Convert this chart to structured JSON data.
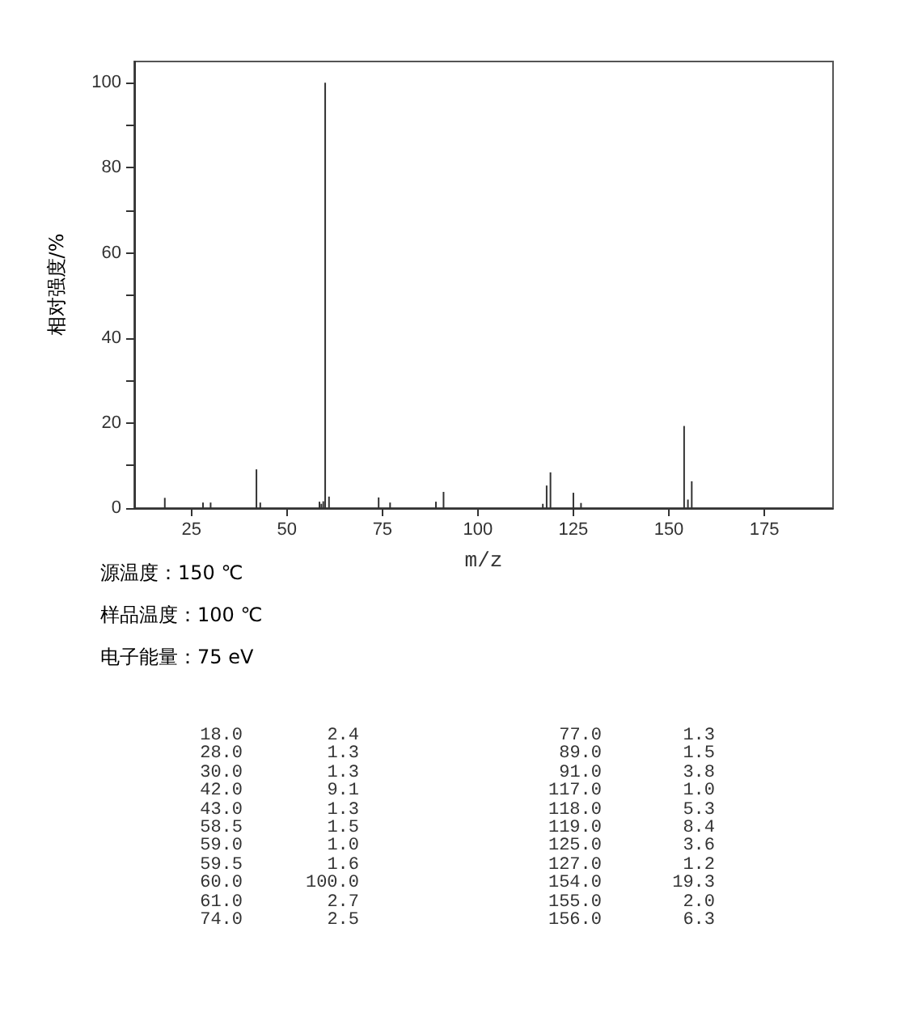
{
  "chart_data": [
    {
      "type": "bar",
      "xlabel": "m/z",
      "ylabel": "相对强度/%",
      "x": [
        18,
        28,
        30,
        42,
        43,
        58.5,
        59,
        59.5,
        60,
        61,
        74,
        77,
        89,
        91,
        117,
        118,
        119,
        125,
        127,
        154,
        155,
        156
      ],
      "values": [
        2.4,
        1.3,
        1.3,
        9.1,
        1.3,
        1.5,
        1.0,
        1.6,
        100,
        2.7,
        2.5,
        1.3,
        1.5,
        3.8,
        1.0,
        5.3,
        8.4,
        3.6,
        1.2,
        19.3,
        2.0,
        6.3
      ],
      "color": "#333333",
      "xlim": [
        10,
        193
      ],
      "xticks": [
        25,
        50,
        75,
        100,
        125,
        150,
        175
      ],
      "ylim": [
        0,
        105
      ],
      "yticks": [
        0,
        {
          "value": 10,
          "label": null
        },
        20,
        {
          "value": 30,
          "label": null
        },
        40,
        {
          "value": 50,
          "label": null
        },
        60,
        {
          "value": 70,
          "label": null
        },
        80,
        {
          "value": 90,
          "label": null
        },
        100
      ],
      "annotations": [
        "源温度：150 ℃",
        "样品温度：100 ℃",
        "电子能量：75 eV"
      ]
    },
    {
      "type": "other",
      "annotations": [
        "18.0",
        "2.4",
        "77.0",
        "1.3",
        "28.0",
        "1.3",
        "89.0",
        "1.5",
        "30.0",
        "1.3",
        "91.0",
        "3.8",
        "42.0",
        "9.1",
        "117.0",
        "1.0",
        "43.0",
        "1.3",
        "118.0",
        "5.3",
        "58.5",
        "1.5",
        "119.0",
        "8.4",
        "59.0",
        "1.0",
        "125.0",
        "3.6",
        "59.5",
        "1.6",
        "127.0",
        "1.2",
        "60.0",
        "100.0",
        "154.0",
        "19.3",
        "61.0",
        "2.7",
        "155.0",
        "2.0",
        "74.0",
        "2.5",
        "156.0",
        "6.3"
      ]
    }
  ]
}
